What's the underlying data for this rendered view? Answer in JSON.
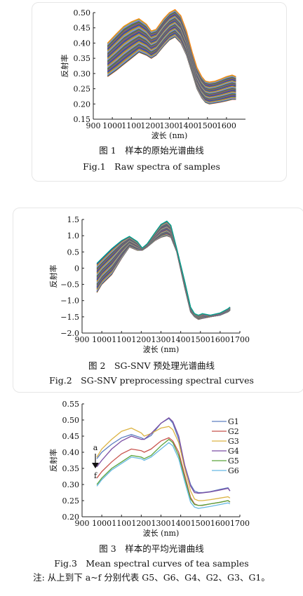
{
  "chart_data": [
    {
      "id": "fig1",
      "type": "line",
      "ylabel": "反射率",
      "xlabel": "波长 (nm)",
      "xlim": [
        900,
        1700
      ],
      "ylim": [
        0.15,
        0.5
      ],
      "xticks": [
        900,
        1000,
        1100,
        1200,
        1300,
        1400,
        1500,
        1600
      ],
      "yticks": [
        0.15,
        0.2,
        0.25,
        0.3,
        0.35,
        0.4,
        0.45,
        0.5
      ],
      "ytick_labels": [
        "0.15",
        "0.20",
        "0.25",
        "0.30",
        "0.35",
        "0.40",
        "0.45",
        "0.50"
      ],
      "curve_count": 72,
      "x": [
        975,
        1020,
        1060,
        1100,
        1140,
        1180,
        1205,
        1230,
        1270,
        1300,
        1330,
        1360,
        1390,
        1420,
        1445,
        1470,
        1490,
        1510,
        1540,
        1570,
        1600,
        1630,
        1650
      ],
      "envelope_upper": [
        0.4,
        0.43,
        0.455,
        0.47,
        0.48,
        0.462,
        0.44,
        0.445,
        0.48,
        0.5,
        0.51,
        0.49,
        0.44,
        0.37,
        0.32,
        0.29,
        0.275,
        0.272,
        0.275,
        0.282,
        0.29,
        0.295,
        0.29
      ],
      "envelope_lower": [
        0.29,
        0.31,
        0.33,
        0.35,
        0.37,
        0.36,
        0.35,
        0.36,
        0.39,
        0.41,
        0.42,
        0.4,
        0.36,
        0.3,
        0.25,
        0.22,
        0.205,
        0.2,
        0.203,
        0.206,
        0.21,
        0.215,
        0.215
      ],
      "caption_cn": "图 1　样本的原始光谱曲线",
      "caption_en": "Fig.1　Raw spectra of samples"
    },
    {
      "id": "fig2",
      "type": "line",
      "ylabel": "反射率",
      "xlabel": "波长 (nm)",
      "xlim": [
        900,
        1700
      ],
      "ylim": [
        -2.0,
        1.5
      ],
      "xticks": [
        900,
        1000,
        1100,
        1200,
        1300,
        1400,
        1500,
        1600,
        1700
      ],
      "yticks": [
        -2.0,
        -1.5,
        -1.0,
        -0.5,
        0,
        0.5,
        1.0,
        1.5
      ],
      "ytick_labels": [
        "−2.0",
        "−1.5",
        "−1.0",
        "−0.5",
        "0",
        "0.5",
        "1.0",
        "1.5"
      ],
      "curve_count": 60,
      "x": [
        975,
        1000,
        1050,
        1100,
        1140,
        1180,
        1205,
        1230,
        1270,
        1300,
        1330,
        1350,
        1380,
        1420,
        1450,
        1470,
        1490,
        1510,
        1550,
        1600,
        1640,
        1650
      ],
      "envelope_upper": [
        0.15,
        0.3,
        0.6,
        0.85,
        0.98,
        0.82,
        0.62,
        0.75,
        1.1,
        1.35,
        1.45,
        1.32,
        0.6,
        -0.4,
        -1.2,
        -1.4,
        -1.45,
        -1.4,
        -1.45,
        -1.38,
        -1.25,
        -1.2
      ],
      "envelope_lower": [
        -0.75,
        -0.5,
        -0.2,
        0.3,
        0.65,
        0.55,
        0.55,
        0.65,
        0.85,
        0.95,
        1.0,
        0.95,
        0.5,
        -0.6,
        -1.35,
        -1.5,
        -1.58,
        -1.55,
        -1.5,
        -1.45,
        -1.35,
        -1.3
      ],
      "caption_cn": "图 2　SG-SNV 预处理光谱曲线",
      "caption_en": "Fig.2　SG-SNV preprocessing spectral curves"
    },
    {
      "id": "fig3",
      "type": "line",
      "ylabel": "反射率",
      "xlabel": "波长 (nm)",
      "xlim": [
        900,
        1700
      ],
      "ylim": [
        0.2,
        0.55
      ],
      "xticks": [
        900,
        1000,
        1100,
        1200,
        1300,
        1400,
        1500,
        1600,
        1700
      ],
      "yticks": [
        0.2,
        0.25,
        0.3,
        0.35,
        0.4,
        0.45,
        0.5,
        0.55
      ],
      "ytick_labels": [
        "0.20",
        "0.25",
        "0.30",
        "0.35",
        "0.40",
        "0.45",
        "0.50",
        "0.55"
      ],
      "x": [
        975,
        1000,
        1050,
        1100,
        1150,
        1200,
        1215,
        1250,
        1300,
        1340,
        1360,
        1390,
        1420,
        1450,
        1470,
        1490,
        1510,
        1550,
        1600,
        1640,
        1650
      ],
      "series": [
        {
          "name": "G1",
          "color": "#5d7fc0",
          "values": [
            0.38,
            0.4,
            0.425,
            0.445,
            0.455,
            0.445,
            0.44,
            0.452,
            0.49,
            0.505,
            0.49,
            0.44,
            0.36,
            0.3,
            0.28,
            0.275,
            0.275,
            0.278,
            0.285,
            0.29,
            0.28
          ]
        },
        {
          "name": "G2",
          "color": "#c8534d",
          "values": [
            0.32,
            0.34,
            0.37,
            0.395,
            0.41,
            0.405,
            0.4,
            0.41,
            0.435,
            0.445,
            0.435,
            0.4,
            0.33,
            0.26,
            0.24,
            0.235,
            0.235,
            0.24,
            0.245,
            0.25,
            0.245
          ]
        },
        {
          "name": "G3",
          "color": "#dcb445",
          "values": [
            0.385,
            0.41,
            0.44,
            0.465,
            0.475,
            0.46,
            0.45,
            0.458,
            0.475,
            0.48,
            0.47,
            0.43,
            0.35,
            0.28,
            0.255,
            0.25,
            0.25,
            0.253,
            0.258,
            0.262,
            0.258
          ]
        },
        {
          "name": "G4",
          "color": "#7b4ea3",
          "values": [
            0.355,
            0.375,
            0.41,
            0.435,
            0.45,
            0.44,
            0.44,
            0.458,
            0.49,
            0.507,
            0.495,
            0.45,
            0.36,
            0.295,
            0.275,
            0.273,
            0.274,
            0.277,
            0.283,
            0.288,
            0.28
          ]
        },
        {
          "name": "G5",
          "color": "#5aa43c",
          "values": [
            0.3,
            0.32,
            0.35,
            0.37,
            0.39,
            0.385,
            0.38,
            0.39,
            0.42,
            0.44,
            0.43,
            0.39,
            0.32,
            0.255,
            0.238,
            0.235,
            0.236,
            0.24,
            0.245,
            0.25,
            0.246
          ]
        },
        {
          "name": "G6",
          "color": "#68b9e3",
          "values": [
            0.295,
            0.315,
            0.345,
            0.365,
            0.385,
            0.38,
            0.375,
            0.385,
            0.41,
            0.43,
            0.42,
            0.38,
            0.31,
            0.245,
            0.23,
            0.226,
            0.228,
            0.232,
            0.238,
            0.243,
            0.24
          ]
        }
      ],
      "annotation_top": "a",
      "annotation_bottom": "f",
      "caption_cn": "图 3　样本的平均光谱曲线",
      "caption_en": "Fig.3　Mean spectral curves of tea samples",
      "note": "注: 从上到下 a~f 分别代表 G5、G6、G4、G2、G3、G1。"
    }
  ]
}
